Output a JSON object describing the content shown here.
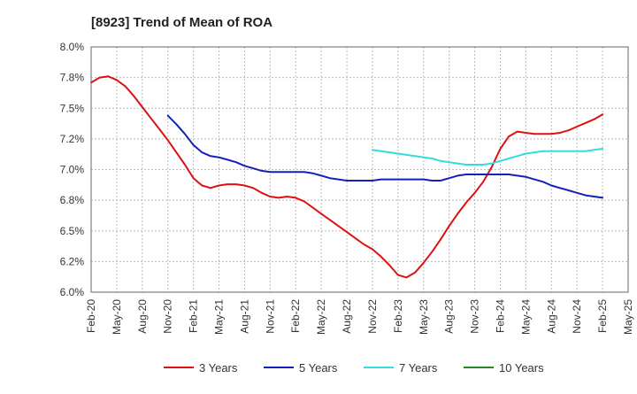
{
  "chart_data": {
    "type": "line",
    "title": "[8923]  Trend of Mean of ROA",
    "xlabel": "",
    "ylabel": "",
    "ylim": [
      6.0,
      8.0
    ],
    "yticks": [
      "6.0%",
      "6.2%",
      "6.5%",
      "6.8%",
      "7.0%",
      "7.2%",
      "7.5%",
      "7.8%",
      "8.0%"
    ],
    "ytick_values": [
      6.0,
      6.25,
      6.5,
      6.75,
      7.0,
      7.25,
      7.5,
      7.75,
      8.0
    ],
    "xticks": [
      "Feb-20",
      "May-20",
      "Aug-20",
      "Nov-20",
      "Feb-21",
      "May-21",
      "Aug-21",
      "Nov-21",
      "Feb-22",
      "May-22",
      "Aug-22",
      "Nov-22",
      "Feb-23",
      "May-23",
      "Aug-23",
      "Nov-23",
      "Feb-24",
      "May-24",
      "Aug-24",
      "Nov-24",
      "Feb-25",
      "May-25"
    ],
    "x_range_months": [
      0,
      63
    ],
    "grid": true,
    "legend_position": "bottom",
    "series": [
      {
        "name": "3 Years",
        "color": "#dd1111",
        "x_months": [
          0,
          1,
          2,
          3,
          4,
          5,
          6,
          7,
          8,
          9,
          10,
          11,
          12,
          13,
          14,
          15,
          16,
          17,
          18,
          19,
          20,
          21,
          22,
          23,
          24,
          25,
          26,
          27,
          28,
          29,
          30,
          31,
          32,
          33,
          34,
          35,
          36,
          37,
          38,
          39,
          40,
          41,
          42,
          43,
          44,
          45,
          46,
          47,
          48,
          49,
          50,
          51,
          52,
          53,
          54,
          55,
          56,
          57,
          58,
          59,
          60
        ],
        "values": [
          7.71,
          7.75,
          7.76,
          7.73,
          7.68,
          7.6,
          7.51,
          7.42,
          7.33,
          7.24,
          7.14,
          7.04,
          6.93,
          6.87,
          6.85,
          6.87,
          6.88,
          6.88,
          6.87,
          6.85,
          6.81,
          6.78,
          6.77,
          6.78,
          6.77,
          6.74,
          6.69,
          6.64,
          6.59,
          6.54,
          6.49,
          6.44,
          6.39,
          6.35,
          6.29,
          6.22,
          6.14,
          6.12,
          6.16,
          6.24,
          6.33,
          6.43,
          6.54,
          6.64,
          6.73,
          6.81,
          6.9,
          7.02,
          7.17,
          7.27,
          7.31,
          7.3,
          7.29,
          7.29,
          7.29,
          7.3,
          7.32,
          7.35,
          7.38,
          7.41,
          7.45
        ]
      },
      {
        "name": "5 Years",
        "color": "#1122bb",
        "x_months": [
          9,
          10,
          11,
          12,
          13,
          14,
          15,
          16,
          17,
          18,
          19,
          20,
          21,
          22,
          23,
          24,
          25,
          26,
          27,
          28,
          29,
          30,
          31,
          32,
          33,
          34,
          35,
          36,
          37,
          38,
          39,
          40,
          41,
          42,
          43,
          44,
          45,
          46,
          47,
          48,
          49,
          50,
          51,
          52,
          53,
          54,
          55,
          56,
          57,
          58,
          59,
          60
        ],
        "values": [
          7.44,
          7.37,
          7.29,
          7.2,
          7.14,
          7.11,
          7.1,
          7.08,
          7.06,
          7.03,
          7.01,
          6.99,
          6.98,
          6.98,
          6.98,
          6.98,
          6.98,
          6.97,
          6.95,
          6.93,
          6.92,
          6.91,
          6.91,
          6.91,
          6.91,
          6.92,
          6.92,
          6.92,
          6.92,
          6.92,
          6.92,
          6.91,
          6.91,
          6.93,
          6.95,
          6.96,
          6.96,
          6.96,
          6.96,
          6.96,
          6.96,
          6.95,
          6.94,
          6.92,
          6.9,
          6.87,
          6.85,
          6.83,
          6.81,
          6.79,
          6.78,
          6.77
        ]
      },
      {
        "name": "7 Years",
        "color": "#33dddd",
        "x_months": [
          33,
          34,
          35,
          36,
          37,
          38,
          39,
          40,
          41,
          42,
          43,
          44,
          45,
          46,
          47,
          48,
          49,
          50,
          51,
          52,
          53,
          54,
          55,
          56,
          57,
          58,
          59,
          60
        ],
        "values": [
          7.16,
          7.15,
          7.14,
          7.13,
          7.12,
          7.11,
          7.1,
          7.09,
          7.07,
          7.06,
          7.05,
          7.04,
          7.04,
          7.04,
          7.05,
          7.07,
          7.09,
          7.11,
          7.13,
          7.14,
          7.15,
          7.15,
          7.15,
          7.15,
          7.15,
          7.15,
          7.16,
          7.17
        ]
      },
      {
        "name": "10 Years",
        "color": "#228822",
        "x_months": [],
        "values": []
      }
    ]
  }
}
